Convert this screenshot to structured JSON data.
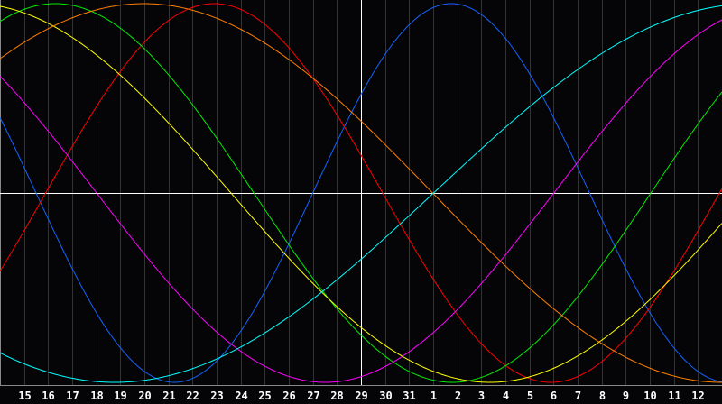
{
  "chart_data": {
    "type": "line",
    "title": "",
    "xlabel": "",
    "ylabel": "",
    "x_ticks": [
      "15",
      "16",
      "17",
      "18",
      "19",
      "20",
      "21",
      "22",
      "23",
      "24",
      "25",
      "26",
      "27",
      "28",
      "29",
      "30",
      "31",
      "1",
      "2",
      "3",
      "4",
      "5",
      "6",
      "7",
      "8",
      "9",
      "10",
      "11",
      "12"
    ],
    "marked_date": "29",
    "ylim": [
      -100,
      100
    ],
    "grid": true,
    "legend": "none",
    "background": "#050508",
    "grid_color": "#333333",
    "axis_color": "#ffffff",
    "series": [
      {
        "color": "#1464ff",
        "period_days": 23,
        "value_at_marked_date": 52,
        "direction_at_marked_date": "rising"
      },
      {
        "color": "#ff0000",
        "period_days": 28,
        "value_at_marked_date": 20,
        "direction_at_marked_date": "falling"
      },
      {
        "color": "#00ee00",
        "period_days": 33,
        "value_at_marked_date": -75,
        "direction_at_marked_date": "falling"
      },
      {
        "color": "#ff00ff",
        "period_days": 38,
        "value_at_marked_date": -97,
        "direction_at_marked_date": "rising"
      },
      {
        "color": "#ffff00",
        "period_days": 43,
        "value_at_marked_date": -71,
        "direction_at_marked_date": "falling"
      },
      {
        "color": "#ff8000",
        "period_days": 48,
        "value_at_marked_date": 38,
        "direction_at_marked_date": "falling"
      },
      {
        "color": "#00ffff",
        "period_days": 53,
        "value_at_marked_date": -35,
        "direction_at_marked_date": "rising"
      }
    ]
  }
}
